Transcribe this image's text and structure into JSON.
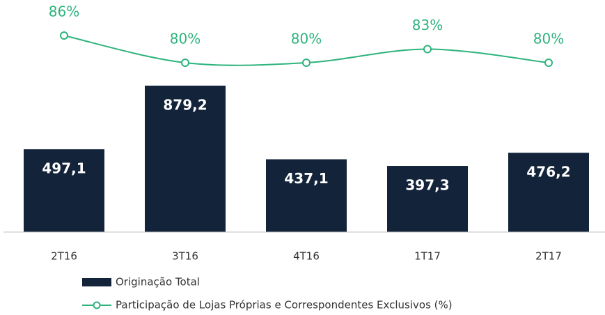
{
  "chart_data": {
    "type": "combo",
    "categories": [
      "2T16",
      "3T16",
      "4T16",
      "1T17",
      "2T17"
    ],
    "series": [
      {
        "name": "Originação Total",
        "type": "bar",
        "color": "#13233a",
        "axis": "y",
        "values": [
          497.1,
          879.2,
          437.1,
          397.3,
          476.2
        ],
        "value_labels": [
          "497,1",
          "879,2",
          "437,1",
          "397,3",
          "476,2"
        ]
      },
      {
        "name": "Participação de Lojas Próprias e Correspondentes Exclusivos (%)",
        "type": "line",
        "color": "#2db37d",
        "axis": "y2",
        "values": [
          86,
          80,
          80,
          83,
          80
        ],
        "value_labels": [
          "86%",
          "80%",
          "80%",
          "83%",
          "80%"
        ]
      }
    ],
    "ylim": [
      0,
      1000
    ],
    "y2lim": [
      70,
      90
    ],
    "legend": "bottom-left"
  }
}
